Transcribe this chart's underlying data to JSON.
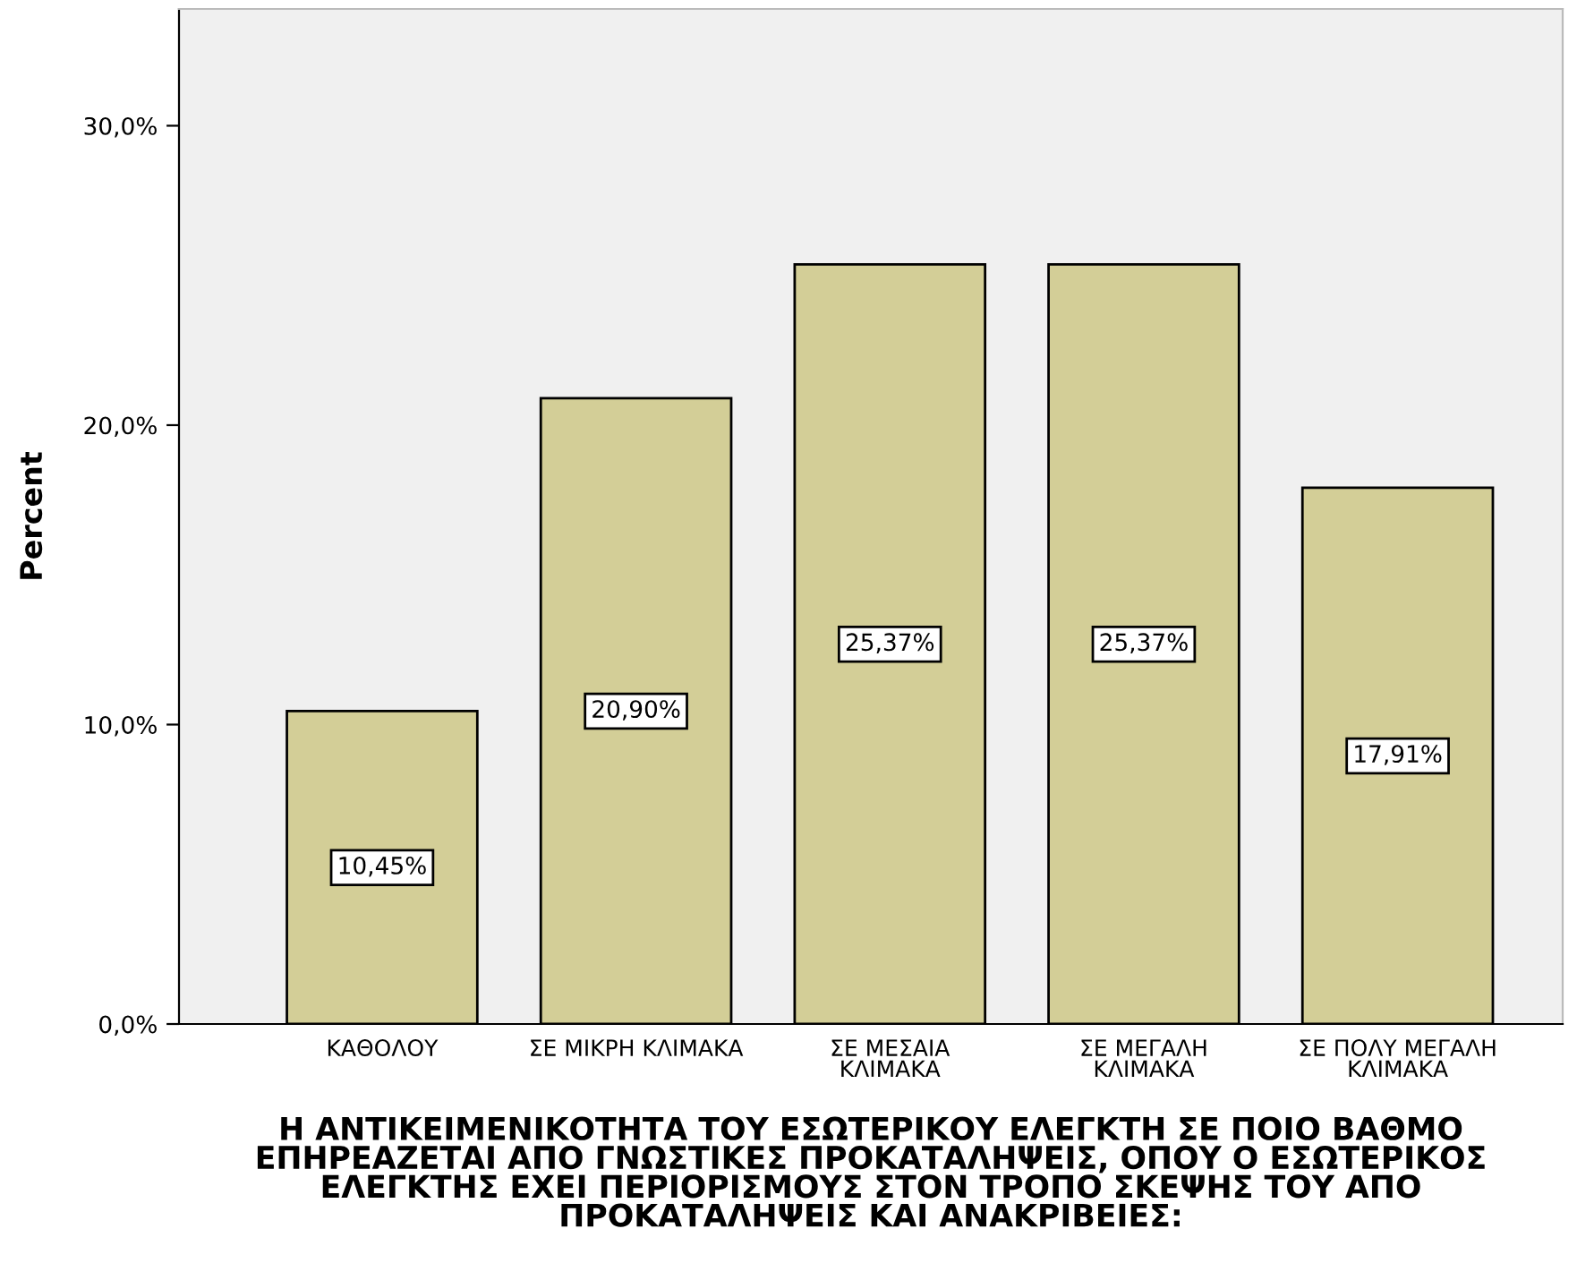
{
  "chart_data": {
    "type": "bar",
    "xlabel": "Η ΑΝΤΙΚΕΙΜΕΝΙΚΟΤΗΤΑ ΤΟΥ ΕΣΩΤΕΡΙΚΟΥ ΕΛΕΓΚΤΗ ΣΕ ΠΟΙΟ ΒΑΘΜΟ\nΕΠΗΡΕΑΖΕΤΑΙ ΑΠΟ ΓΝΩΣΤΙΚΕΣ ΠΡΟΚΑΤΑΛΗΨΕΙΣ, ΟΠΟΥ Ο ΕΣΩΤΕΡΙΚΟΣ\nΕΛΕΓΚΤΗΣ ΕΧΕΙ ΠΕΡΙΟΡΙΣΜΟΥΣ ΣΤΟΝ ΤΡΟΠΟ ΣΚΕΨΗΣ ΤΟΥ ΑΠΟ\nΠΡΟΚΑΤΑΛΗΨΕΙΣ ΚΑΙ ΑΝΑΚΡΙΒΕΙΕΣ:",
    "ylabel": "Percent",
    "categories": [
      "ΚΑΘΟΛΟΥ",
      "ΣΕ ΜΙΚΡΗ ΚΛΙΜΑΚΑ",
      "ΣΕ ΜΕΣΑΙΑ\nΚΛΙΜΑΚΑ",
      "ΣΕ ΜΕΓΑΛΗ\nΚΛΙΜΑΚΑ",
      "ΣΕ ΠΟΛΥ ΜΕΓΑΛΗ\nΚΛΙΜΑΚΑ"
    ],
    "values": [
      10.45,
      20.9,
      25.37,
      25.37,
      17.91
    ],
    "value_labels": [
      "10,45%",
      "20,90%",
      "25,37%",
      "25,37%",
      "17,91%"
    ],
    "color": "#d3ce97",
    "ylim": [
      0,
      33.9
    ],
    "yticks": [
      {
        "value": 0,
        "label": "0,0%"
      },
      {
        "value": 10,
        "label": "10,0%"
      },
      {
        "value": 20,
        "label": "20,0%"
      },
      {
        "value": 30,
        "label": "30,0%"
      }
    ],
    "grid": false
  }
}
